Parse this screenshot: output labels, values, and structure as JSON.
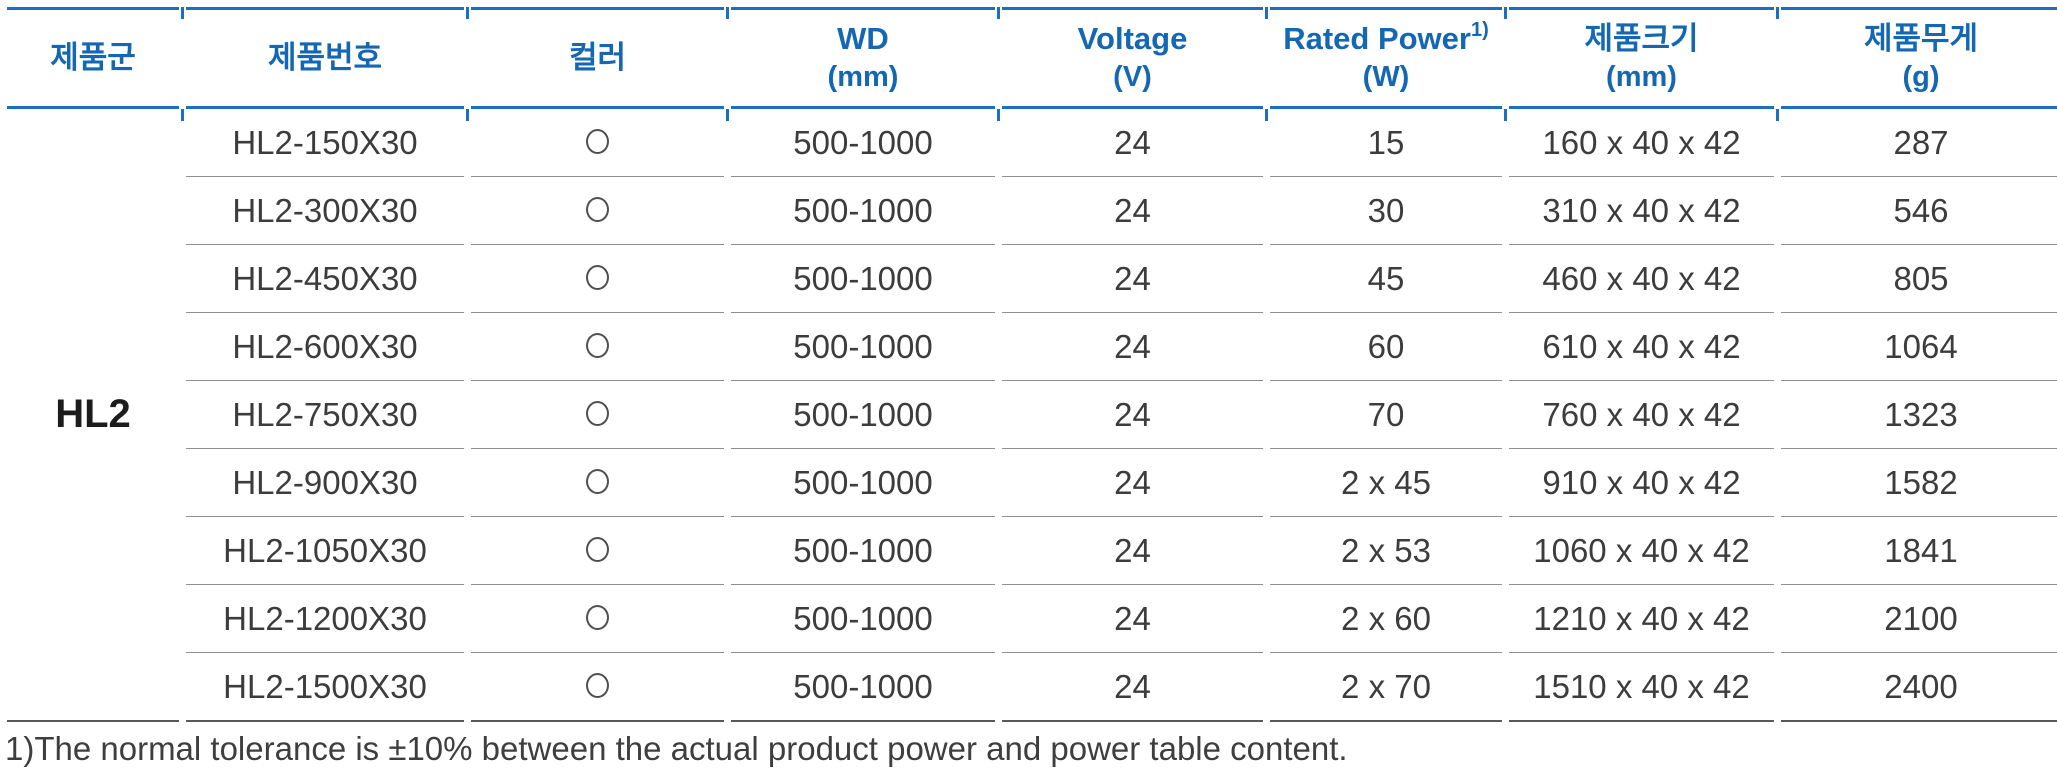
{
  "table": {
    "columns": [
      {
        "label": "제품군",
        "unit": ""
      },
      {
        "label": "제품번호",
        "unit": ""
      },
      {
        "label": "컬러",
        "unit": ""
      },
      {
        "label": "WD",
        "unit": "(mm)"
      },
      {
        "label": "Voltage",
        "unit": "(V)"
      },
      {
        "label": "Rated Power",
        "footnote_mark": "1)",
        "unit": "(W)"
      },
      {
        "label": "제품크기",
        "unit": "(mm)"
      },
      {
        "label": "제품무게",
        "unit": "(g)"
      }
    ],
    "product_group": "HL2",
    "color_icon": "circle-outline",
    "rows": [
      {
        "model": "HL2-150X30",
        "color": "○",
        "wd": "500-1000",
        "voltage": "24",
        "rated_power": "15",
        "size": "160 x 40 x 42",
        "weight": "287"
      },
      {
        "model": "HL2-300X30",
        "color": "○",
        "wd": "500-1000",
        "voltage": "24",
        "rated_power": "30",
        "size": "310 x 40 x 42",
        "weight": "546"
      },
      {
        "model": "HL2-450X30",
        "color": "○",
        "wd": "500-1000",
        "voltage": "24",
        "rated_power": "45",
        "size": "460 x 40 x 42",
        "weight": "805"
      },
      {
        "model": "HL2-600X30",
        "color": "○",
        "wd": "500-1000",
        "voltage": "24",
        "rated_power": "60",
        "size": "610 x 40 x 42",
        "weight": "1064"
      },
      {
        "model": "HL2-750X30",
        "color": "○",
        "wd": "500-1000",
        "voltage": "24",
        "rated_power": "70",
        "size": "760 x 40 x 42",
        "weight": "1323"
      },
      {
        "model": "HL2-900X30",
        "color": "○",
        "wd": "500-1000",
        "voltage": "24",
        "rated_power": "2 x 45",
        "size": "910 x 40 x 42",
        "weight": "1582"
      },
      {
        "model": "HL2-1050X30",
        "color": "○",
        "wd": "500-1000",
        "voltage": "24",
        "rated_power": "2 x 53",
        "size": "1060 x 40 x 42",
        "weight": "1841"
      },
      {
        "model": "HL2-1200X30",
        "color": "○",
        "wd": "500-1000",
        "voltage": "24",
        "rated_power": "2 x 60",
        "size": "1210 x 40 x 42",
        "weight": "2100"
      },
      {
        "model": "HL2-1500X30",
        "color": "○",
        "wd": "500-1000",
        "voltage": "24",
        "rated_power": "2 x 70",
        "size": "1510 x 40 x 42",
        "weight": "2400"
      }
    ]
  },
  "footnote": "1)The normal tolerance is ±10% between the actual product power and power table content.",
  "colors": {
    "accent_rule_blue": "#1a6ec4",
    "header_text_blue": "#1467b3",
    "row_separator_gray": "#8f8f8f",
    "table_bottom_gray": "#595959",
    "body_text": "#3c3c3c"
  }
}
